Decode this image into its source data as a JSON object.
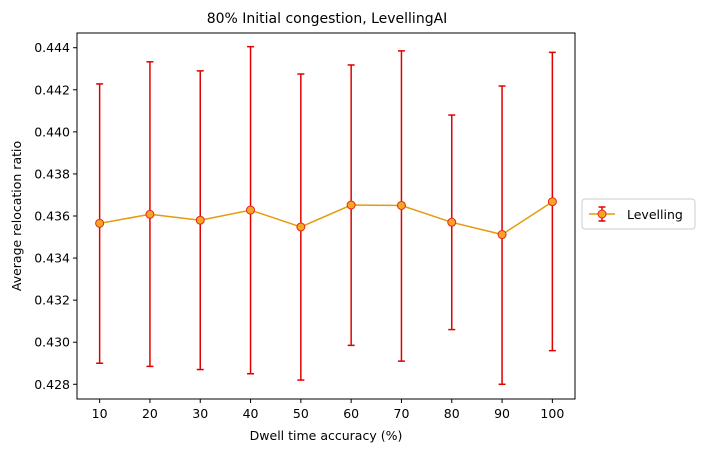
{
  "chart_data": {
    "type": "line",
    "title": "80% Initial congestion, LevellingAI",
    "xlabel": "Dwell time accuracy (%)",
    "ylabel": "Average relocation ratio",
    "x": [
      10,
      20,
      30,
      40,
      50,
      60,
      70,
      80,
      90,
      100
    ],
    "xticks": [
      10,
      20,
      30,
      40,
      50,
      60,
      70,
      80,
      90,
      100
    ],
    "yticks": [
      0.428,
      0.43,
      0.432,
      0.434,
      0.436,
      0.438,
      0.44,
      0.442,
      0.444
    ],
    "ytick_labels": [
      "0.428",
      "0.430",
      "0.432",
      "0.434",
      "0.436",
      "0.438",
      "0.440",
      "0.442",
      "0.444"
    ],
    "xlim": [
      5.5,
      104.5
    ],
    "ylim": [
      0.4273,
      0.4447
    ],
    "grid": false,
    "legend_position": "right, outside plot",
    "series": [
      {
        "name": "Levelling",
        "values": [
          0.43565,
          0.43608,
          0.4358,
          0.43628,
          0.43548,
          0.43652,
          0.4365,
          0.4357,
          0.43512,
          0.43668
        ],
        "error_low": [
          0.429,
          0.42885,
          0.4287,
          0.4285,
          0.4282,
          0.42985,
          0.4291,
          0.4306,
          0.428,
          0.4296
        ],
        "error_high": [
          0.44228,
          0.44333,
          0.4429,
          0.44405,
          0.44275,
          0.44318,
          0.44385,
          0.4408,
          0.44218,
          0.44378
        ],
        "line_color": "#e69a0c",
        "marker_face_color": "#f5a623",
        "marker_edge_color": "#e8241a",
        "error_color": "#e00000"
      }
    ]
  }
}
